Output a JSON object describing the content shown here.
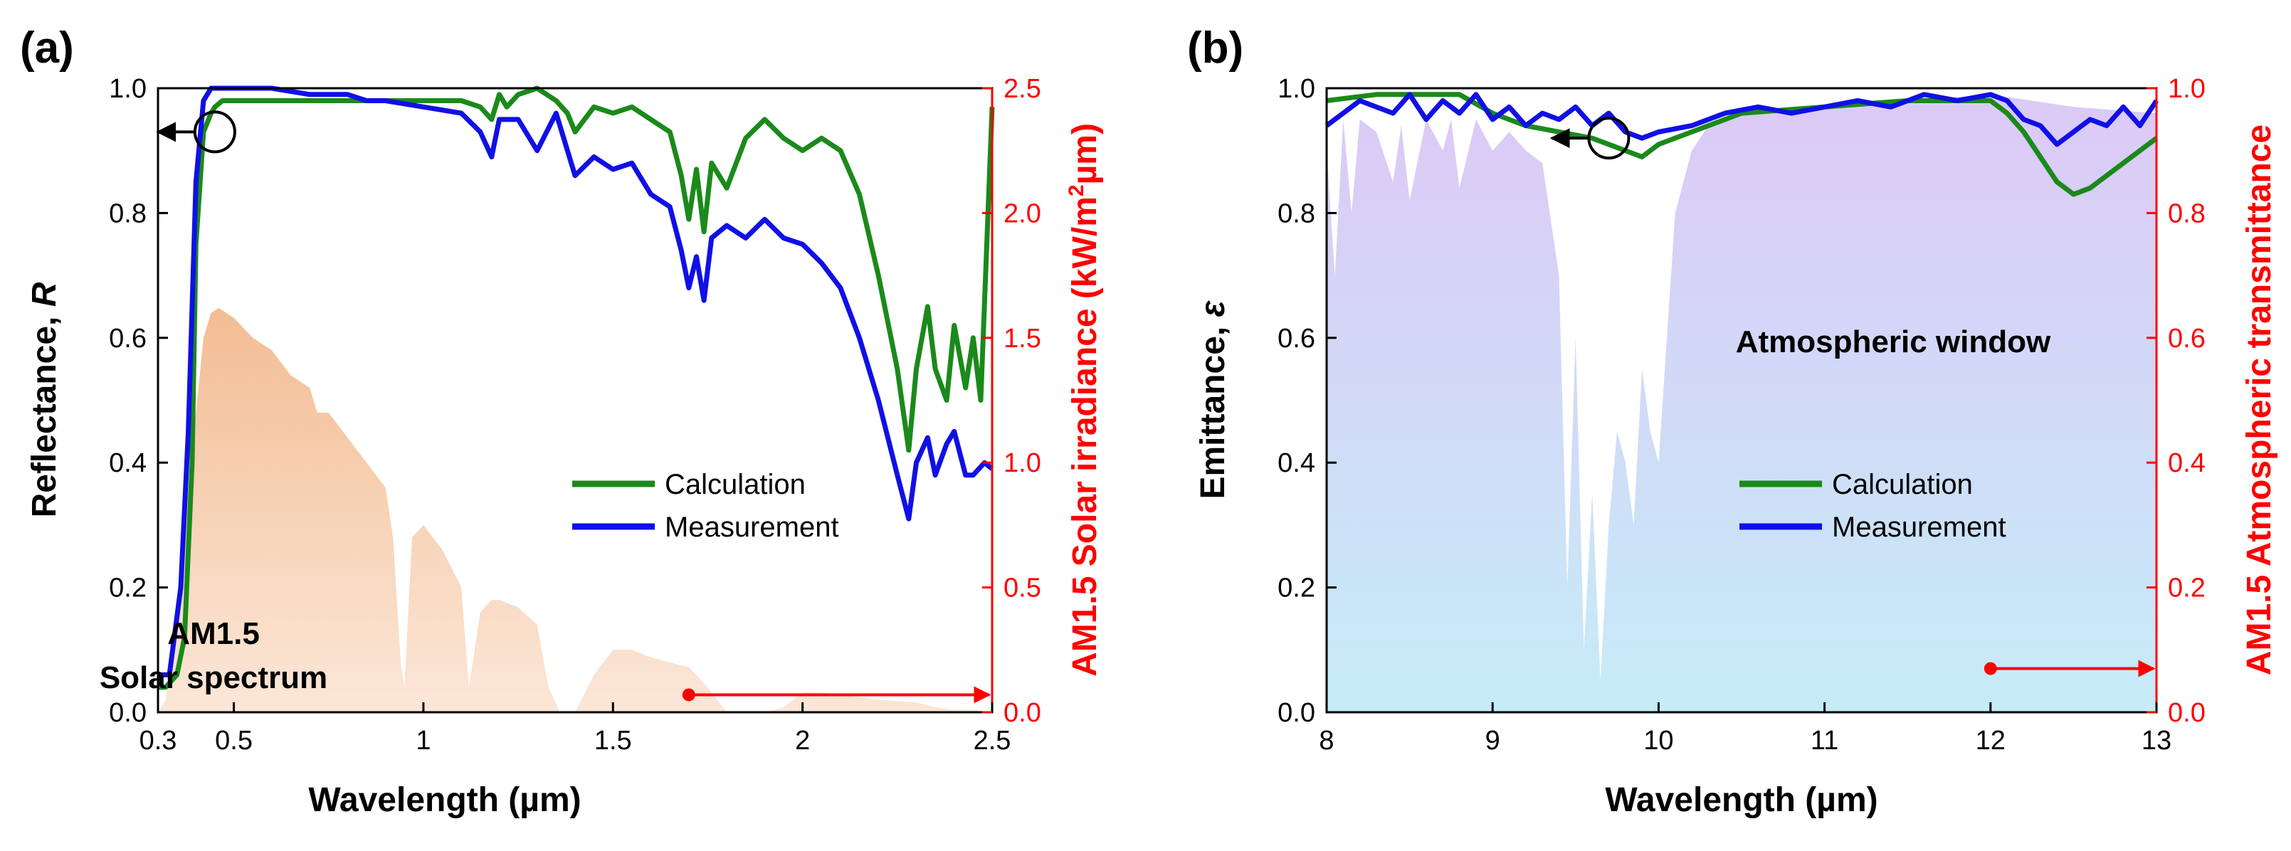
{
  "chart_data": [
    {
      "panel_label": "(a)",
      "type": "line",
      "xlabel": "Wavelength (µm)",
      "ylabel": "Reflectance, ",
      "ylabel_italic": "R",
      "y2label_pre": "AM1.5 Solar irradiance (kW/m",
      "y2label_sup": "2",
      "y2label_post": "µm)",
      "xlim": [
        0.3,
        2.5
      ],
      "ylim": [
        0,
        1.0
      ],
      "y2lim": [
        0,
        2.5
      ],
      "xticks": [
        0.3,
        0.5,
        1,
        1.5,
        2,
        2.5
      ],
      "xtick_labels": [
        "0.3",
        "0.5",
        "1",
        "1.5",
        "2",
        "2.5"
      ],
      "yticks": [
        0,
        0.2,
        0.4,
        0.6,
        0.8,
        1.0
      ],
      "ytick_labels": [
        "0.0",
        "0.2",
        "0.4",
        "0.6",
        "0.8",
        "1.0"
      ],
      "y2ticks": [
        0,
        0.5,
        1.0,
        1.5,
        2.0,
        2.5
      ],
      "y2tick_labels": [
        "0.0",
        "0.5",
        "1.0",
        "1.5",
        "2.0",
        "2.5"
      ],
      "annotation_lines": [
        "AM1.5",
        "Solar spectrum"
      ],
      "legend": [
        "Calculation",
        "Measurement"
      ],
      "colors": {
        "calc": "#1a8a1a",
        "meas": "#1010e6",
        "fill": "#f6c9a6",
        "axis2": "#ff0000"
      },
      "series": [
        {
          "name": "Calculation",
          "x": [
            0.3,
            0.32,
            0.35,
            0.37,
            0.39,
            0.4,
            0.42,
            0.44,
            0.45,
            0.47,
            0.5,
            0.6,
            0.7,
            0.8,
            0.9,
            1.0,
            1.1,
            1.15,
            1.18,
            1.2,
            1.22,
            1.25,
            1.3,
            1.35,
            1.38,
            1.4,
            1.45,
            1.5,
            1.55,
            1.6,
            1.65,
            1.68,
            1.7,
            1.72,
            1.74,
            1.76,
            1.8,
            1.85,
            1.9,
            1.95,
            2.0,
            2.05,
            2.1,
            2.15,
            2.2,
            2.25,
            2.28,
            2.3,
            2.33,
            2.35,
            2.38,
            2.4,
            2.43,
            2.45,
            2.47,
            2.5
          ],
          "y": [
            0.04,
            0.04,
            0.06,
            0.12,
            0.4,
            0.75,
            0.93,
            0.96,
            0.97,
            0.98,
            0.98,
            0.98,
            0.98,
            0.98,
            0.98,
            0.98,
            0.98,
            0.97,
            0.95,
            0.99,
            0.97,
            0.99,
            1.0,
            0.98,
            0.96,
            0.93,
            0.97,
            0.96,
            0.97,
            0.95,
            0.93,
            0.86,
            0.79,
            0.87,
            0.77,
            0.88,
            0.84,
            0.92,
            0.95,
            0.92,
            0.9,
            0.92,
            0.9,
            0.83,
            0.7,
            0.55,
            0.42,
            0.55,
            0.65,
            0.55,
            0.5,
            0.62,
            0.52,
            0.6,
            0.5,
            0.97
          ]
        },
        {
          "name": "Measurement",
          "x": [
            0.3,
            0.33,
            0.36,
            0.38,
            0.4,
            0.42,
            0.44,
            0.46,
            0.5,
            0.6,
            0.7,
            0.8,
            0.85,
            0.9,
            1.0,
            1.1,
            1.15,
            1.18,
            1.2,
            1.25,
            1.3,
            1.35,
            1.4,
            1.45,
            1.5,
            1.55,
            1.6,
            1.65,
            1.68,
            1.7,
            1.72,
            1.74,
            1.76,
            1.8,
            1.85,
            1.9,
            1.95,
            2.0,
            2.05,
            2.1,
            2.15,
            2.2,
            2.25,
            2.28,
            2.3,
            2.33,
            2.35,
            2.38,
            2.4,
            2.43,
            2.45,
            2.48,
            2.5
          ],
          "y": [
            0.06,
            0.06,
            0.2,
            0.45,
            0.85,
            0.98,
            1.0,
            1.0,
            1.0,
            1.0,
            0.99,
            0.99,
            0.98,
            0.98,
            0.97,
            0.96,
            0.93,
            0.89,
            0.95,
            0.95,
            0.9,
            0.96,
            0.86,
            0.89,
            0.87,
            0.88,
            0.83,
            0.81,
            0.74,
            0.68,
            0.73,
            0.66,
            0.76,
            0.78,
            0.76,
            0.79,
            0.76,
            0.75,
            0.72,
            0.68,
            0.6,
            0.5,
            0.38,
            0.31,
            0.4,
            0.44,
            0.38,
            0.43,
            0.45,
            0.38,
            0.38,
            0.4,
            0.39
          ]
        }
      ],
      "fill_series": {
        "axis": "y2",
        "x": [
          0.3,
          0.32,
          0.35,
          0.38,
          0.4,
          0.42,
          0.44,
          0.46,
          0.48,
          0.5,
          0.55,
          0.6,
          0.65,
          0.7,
          0.72,
          0.75,
          0.8,
          0.85,
          0.9,
          0.92,
          0.94,
          0.95,
          0.97,
          1.0,
          1.05,
          1.1,
          1.12,
          1.15,
          1.18,
          1.2,
          1.25,
          1.3,
          1.33,
          1.36,
          1.4,
          1.45,
          1.5,
          1.55,
          1.6,
          1.65,
          1.7,
          1.75,
          1.8,
          1.85,
          1.9,
          1.95,
          2.0,
          2.05,
          2.1,
          2.2,
          2.3,
          2.35,
          2.4,
          2.45,
          2.5
        ],
        "values": [
          0.0,
          0.05,
          0.4,
          0.9,
          1.2,
          1.5,
          1.6,
          1.62,
          1.6,
          1.58,
          1.5,
          1.45,
          1.35,
          1.3,
          1.2,
          1.2,
          1.1,
          1.0,
          0.9,
          0.7,
          0.2,
          0.1,
          0.7,
          0.75,
          0.65,
          0.5,
          0.1,
          0.4,
          0.45,
          0.45,
          0.42,
          0.35,
          0.1,
          0.0,
          0.0,
          0.15,
          0.25,
          0.25,
          0.22,
          0.2,
          0.18,
          0.1,
          0.0,
          0.0,
          0.0,
          0.02,
          0.08,
          0.08,
          0.07,
          0.05,
          0.04,
          0.02,
          0.01,
          0.01,
          0.0
        ]
      },
      "arrow_right": {
        "x_from": 1.7,
        "x_to": 2.5,
        "y2": 0.07
      },
      "arrow_left": {
        "x": 0.45,
        "y": 0.93
      }
    },
    {
      "panel_label": "(b)",
      "type": "line",
      "xlabel": "Wavelength (µm)",
      "ylabel": "Emittance, ",
      "ylabel_italic": "ε",
      "y2label": "AM1.5 Atmospheric transmittance",
      "xlim": [
        8,
        13
      ],
      "ylim": [
        0,
        1.0
      ],
      "y2lim": [
        0,
        1.0
      ],
      "xticks": [
        8,
        9,
        10,
        11,
        12,
        13
      ],
      "xtick_labels": [
        "8",
        "9",
        "10",
        "11",
        "12",
        "13"
      ],
      "yticks": [
        0,
        0.2,
        0.4,
        0.6,
        0.8,
        1.0
      ],
      "ytick_labels": [
        "0.0",
        "0.2",
        "0.4",
        "0.6",
        "0.8",
        "1.0"
      ],
      "y2tick_labels": [
        "0.0",
        "0.2",
        "0.4",
        "0.6",
        "0.8",
        "1.0"
      ],
      "annotation": "Atmospheric window",
      "legend": [
        "Calculation",
        "Measurement"
      ],
      "colors": {
        "calc": "#1a8a1a",
        "meas": "#1010e6",
        "fill_top": "#dccbf5",
        "fill_bottom": "#c9ecf8",
        "axis2": "#ff0000"
      },
      "series": [
        {
          "name": "Calculation",
          "x": [
            8,
            8.3,
            8.6,
            8.8,
            9.0,
            9.2,
            9.4,
            9.6,
            9.8,
            9.9,
            10.0,
            10.2,
            10.5,
            11.0,
            11.5,
            12.0,
            12.1,
            12.2,
            12.3,
            12.4,
            12.5,
            12.6,
            12.8,
            13.0
          ],
          "y": [
            0.98,
            0.99,
            0.99,
            0.99,
            0.96,
            0.94,
            0.93,
            0.92,
            0.9,
            0.89,
            0.91,
            0.93,
            0.96,
            0.97,
            0.98,
            0.98,
            0.96,
            0.93,
            0.89,
            0.85,
            0.83,
            0.84,
            0.88,
            0.92
          ]
        },
        {
          "name": "Measurement",
          "x": [
            8,
            8.2,
            8.4,
            8.5,
            8.6,
            8.7,
            8.8,
            8.9,
            9.0,
            9.1,
            9.2,
            9.3,
            9.4,
            9.5,
            9.6,
            9.7,
            9.8,
            9.9,
            10.0,
            10.2,
            10.4,
            10.6,
            10.8,
            11.0,
            11.2,
            11.4,
            11.6,
            11.8,
            12.0,
            12.1,
            12.2,
            12.3,
            12.4,
            12.5,
            12.6,
            12.7,
            12.8,
            12.9,
            13.0
          ],
          "y": [
            0.94,
            0.98,
            0.96,
            0.99,
            0.95,
            0.98,
            0.96,
            0.99,
            0.95,
            0.97,
            0.94,
            0.96,
            0.95,
            0.97,
            0.94,
            0.96,
            0.93,
            0.92,
            0.93,
            0.94,
            0.96,
            0.97,
            0.96,
            0.97,
            0.98,
            0.97,
            0.99,
            0.98,
            0.99,
            0.98,
            0.95,
            0.94,
            0.91,
            0.93,
            0.95,
            0.94,
            0.97,
            0.94,
            0.98
          ]
        }
      ],
      "fill_series": {
        "axis": "y2",
        "x": [
          8,
          8.05,
          8.1,
          8.15,
          8.2,
          8.3,
          8.4,
          8.45,
          8.5,
          8.6,
          8.7,
          8.75,
          8.8,
          8.9,
          9.0,
          9.1,
          9.2,
          9.3,
          9.4,
          9.45,
          9.5,
          9.55,
          9.6,
          9.65,
          9.7,
          9.75,
          9.8,
          9.85,
          9.9,
          9.95,
          10.0,
          10.05,
          10.1,
          10.2,
          10.3,
          10.5,
          11.0,
          11.5,
          12.0,
          12.5,
          13.0
        ],
        "values": [
          0.9,
          0.7,
          0.95,
          0.8,
          0.95,
          0.93,
          0.85,
          0.94,
          0.82,
          0.95,
          0.9,
          0.95,
          0.84,
          0.95,
          0.9,
          0.93,
          0.9,
          0.88,
          0.7,
          0.2,
          0.6,
          0.1,
          0.35,
          0.05,
          0.3,
          0.45,
          0.4,
          0.3,
          0.55,
          0.45,
          0.4,
          0.6,
          0.8,
          0.9,
          0.94,
          0.96,
          0.97,
          0.98,
          0.99,
          0.97,
          0.96
        ]
      },
      "arrow_right": {
        "x_from": 12.0,
        "x_to": 13.0,
        "y2": 0.07
      },
      "arrow_left": {
        "x": 9.7,
        "y": 0.92
      }
    }
  ]
}
